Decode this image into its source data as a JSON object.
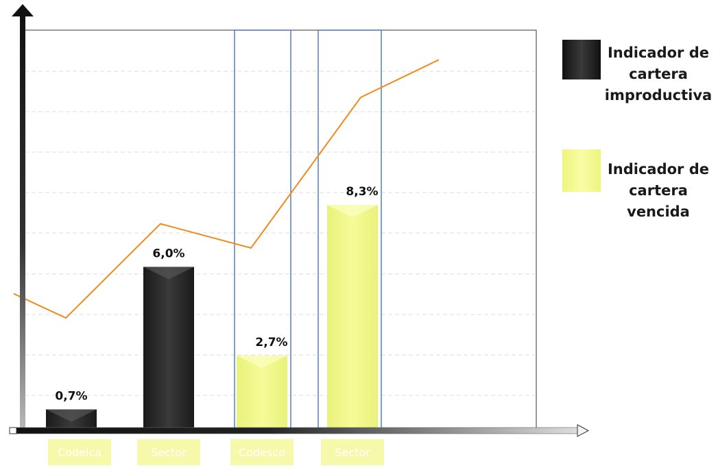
{
  "chart_data": {
    "type": "bar",
    "categories": [
      "Codelca",
      "Sector",
      "Codesco",
      "Sector"
    ],
    "series": [
      {
        "name": "Indicador de cartera improductiva",
        "values": [
          0.7,
          6.0,
          null,
          null
        ],
        "color": "#2b2b2b"
      },
      {
        "name": "Indicador de cartera vencida",
        "values": [
          null,
          null,
          2.7,
          8.3
        ],
        "color": "#f2f98a"
      }
    ],
    "data_labels": [
      "0,7%",
      "6,0%",
      "2,7%",
      "8,3%"
    ],
    "trend_line": {
      "color": "#f08a1c",
      "values": [
        5.0,
        4.1,
        7.6,
        6.7,
        12.3,
        13.7
      ]
    },
    "ylim": [
      0,
      14.8
    ],
    "grid": true,
    "legend_position": "right",
    "xlabel": "",
    "ylabel": ""
  },
  "legend": {
    "items": [
      {
        "lines": [
          "Indicador de",
          "cartera",
          "improductiva"
        ],
        "color": "#2b2b2b"
      },
      {
        "lines": [
          "Indicador de",
          "cartera",
          "vencida"
        ],
        "color": "#f2f98a"
      }
    ]
  }
}
